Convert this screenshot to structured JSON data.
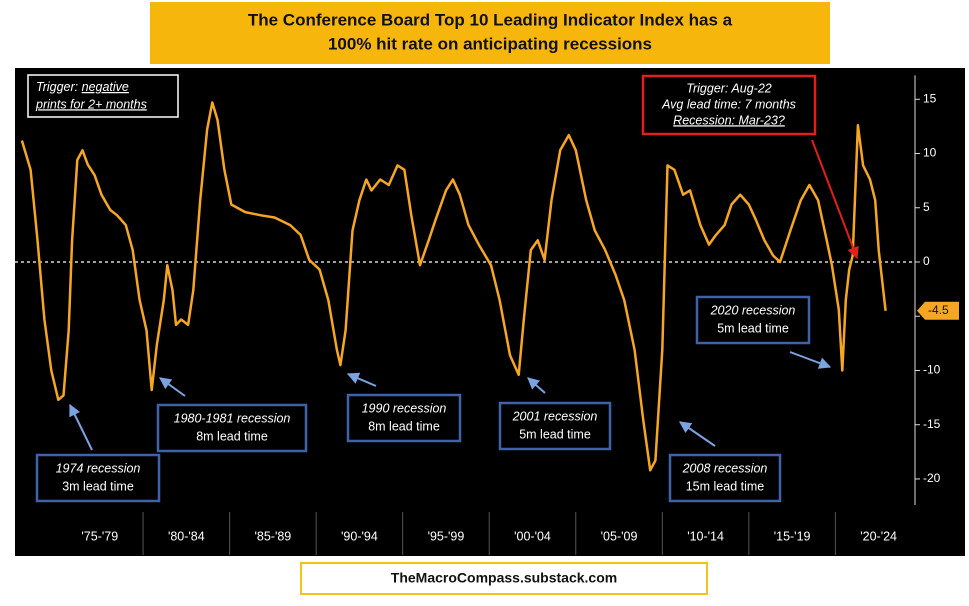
{
  "chart_data": {
    "type": "line",
    "title": [
      "The Conference Board Top 10 Leading Indicator Index has a",
      "100% hit rate on anticipating recessions"
    ],
    "color": "#f5a623",
    "x": [
      1973.0,
      1973.5,
      1973.9,
      1974.3,
      1974.7,
      1975.1,
      1975.4,
      1975.7,
      1975.9,
      1976.2,
      1976.5,
      1976.8,
      1977.2,
      1977.6,
      1978.1,
      1978.5,
      1979.0,
      1979.4,
      1979.8,
      1980.2,
      1980.5,
      1980.8,
      1981.2,
      1981.4,
      1981.7,
      1981.9,
      1982.2,
      1982.6,
      1982.9,
      1983.3,
      1983.7,
      1984.0,
      1984.3,
      1984.7,
      1985.1,
      1985.9,
      1986.8,
      1987.6,
      1988.5,
      1989.1,
      1989.6,
      1990.2,
      1990.7,
      1991.2,
      1991.4,
      1991.7,
      1992.1,
      1992.5,
      1992.9,
      1993.2,
      1993.7,
      1994.2,
      1994.7,
      1995.1,
      1995.5,
      1996.0,
      1996.5,
      1996.9,
      1997.5,
      1997.9,
      1998.3,
      1998.8,
      1999.4,
      2000.1,
      2000.6,
      2001.2,
      2001.7,
      2002.0,
      2002.4,
      2002.8,
      2003.2,
      2003.6,
      2004.1,
      2004.6,
      2005.0,
      2005.6,
      2006.1,
      2006.7,
      2007.3,
      2007.8,
      2008.4,
      2008.9,
      2009.3,
      2009.6,
      2010.0,
      2010.3,
      2010.7,
      2011.2,
      2011.6,
      2012.2,
      2012.7,
      2013.1,
      2013.6,
      2014.0,
      2014.5,
      2015.0,
      2015.4,
      2015.9,
      2016.4,
      2016.8,
      2017.4,
      2018.0,
      2018.5,
      2019.0,
      2019.5,
      2019.8,
      2020.2,
      2020.4,
      2020.6,
      2020.8,
      2021.0,
      2021.3,
      2021.6,
      2022.0,
      2022.3,
      2022.5,
      2022.9
    ],
    "values": [
      11.2,
      8.5,
      2,
      -5.3,
      -10,
      -12.7,
      -12.3,
      -6.3,
      2,
      9.4,
      10.3,
      9,
      8,
      6.2,
      4.8,
      4.3,
      3.4,
      1.1,
      -3.5,
      -6.3,
      -11.8,
      -7.6,
      -3.5,
      -0.3,
      -2.6,
      -5.8,
      -5.3,
      -5.8,
      -2.6,
      5.7,
      12.2,
      14.7,
      13.1,
      8.5,
      5.3,
      4.6,
      4.3,
      4.1,
      3.4,
      2.5,
      0.2,
      -0.7,
      -3.5,
      -8.1,
      -9.5,
      -6.3,
      2.9,
      5.7,
      7.6,
      6.6,
      7.6,
      7.1,
      8.9,
      8.5,
      4.3,
      -0.3,
      2,
      3.9,
      6.6,
      7.6,
      6.2,
      3.4,
      1.6,
      -0.3,
      -3.5,
      -8.6,
      -10.4,
      -5.3,
      1.1,
      2,
      0.2,
      5.7,
      10.3,
      11.7,
      10.3,
      5.7,
      2.9,
      1.1,
      -1.2,
      -3.5,
      -8.1,
      -14.6,
      -19.2,
      -18.3,
      -8.1,
      8.9,
      8.5,
      6.2,
      6.6,
      3.4,
      1.6,
      2.5,
      3.4,
      5.3,
      6.2,
      5.3,
      3.9,
      2,
      0.6,
      0,
      2.9,
      5.7,
      7.1,
      5.7,
      2,
      -0.3,
      -4.4,
      -10,
      -3.5,
      -0.7,
      0.6,
      12.6,
      8.9,
      7.6,
      5.7,
      1.1,
      -4.5
    ],
    "xlim": [
      1972.6,
      2024.6
    ],
    "xticks": [
      {
        "value": 1977.5,
        "label": "'75-'79"
      },
      {
        "value": 1982.5,
        "label": "'80-'84"
      },
      {
        "value": 1987.5,
        "label": "'85-'89"
      },
      {
        "value": 1992.5,
        "label": "'90-'94"
      },
      {
        "value": 1997.5,
        "label": "'95-'99"
      },
      {
        "value": 2002.5,
        "label": "'00-'04"
      },
      {
        "value": 2007.5,
        "label": "'05-'09"
      },
      {
        "value": 2012.5,
        "label": "'10-'14"
      },
      {
        "value": 2017.5,
        "label": "'15-'19"
      },
      {
        "value": 2022.5,
        "label": "'20-'24"
      }
    ],
    "ylim": [
      -22.4,
      17.2
    ],
    "yticks": [
      -20,
      -15,
      -10,
      -5,
      0,
      5,
      10,
      15
    ],
    "reference_line": 0,
    "annotations": {
      "trigger": {
        "label": "Trigger:",
        "lines": [
          "negative",
          "prints for 2+ months"
        ]
      },
      "current": [
        "Trigger: Aug-22",
        "Avg lead time: 7 months",
        "Recession: Mar-23?"
      ],
      "recessions": [
        [
          "1974 recession",
          "3m lead time"
        ],
        [
          "1980-1981 recession",
          "8m lead time"
        ],
        [
          "1990 recession",
          "8m lead time"
        ],
        [
          "2001 recession",
          "5m lead time"
        ],
        [
          "2008 recession",
          "15m lead time"
        ],
        [
          "2020 recession",
          "5m lead time"
        ]
      ]
    },
    "source": "TheMacroCompass.substack.com"
  }
}
